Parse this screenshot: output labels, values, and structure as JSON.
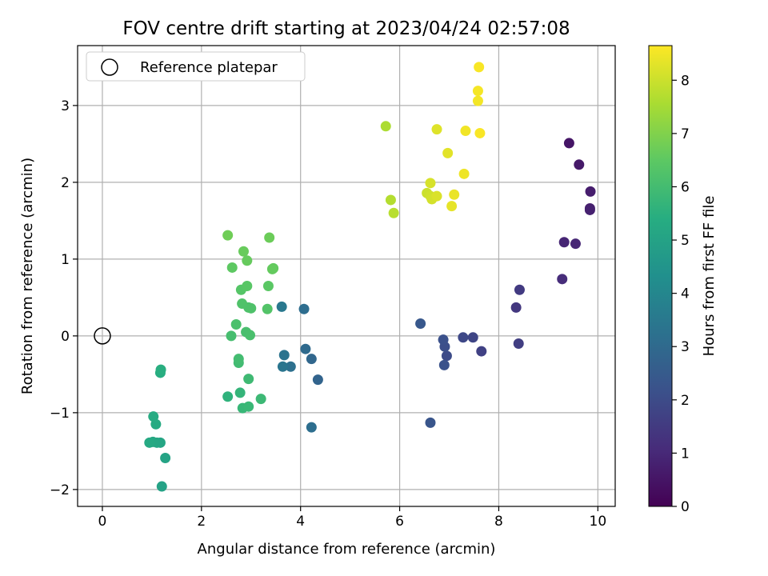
{
  "chart_data": {
    "type": "scatter",
    "title": "FOV centre drift starting at 2023/04/24 02:57:08",
    "xlabel": "Angular distance from reference (arcmin)",
    "ylabel": "Rotation from reference (arcmin)",
    "xlim": [
      -0.5,
      10.35
    ],
    "ylim": [
      -2.22,
      3.78
    ],
    "xticks": [
      0,
      2,
      4,
      6,
      8,
      10
    ],
    "yticks": [
      -2,
      -1,
      0,
      1,
      2,
      3
    ],
    "xtick_labels": [
      "0",
      "2",
      "4",
      "6",
      "8",
      "10"
    ],
    "ytick_labels": [
      "−2",
      "−1",
      "0",
      "1",
      "2",
      "3"
    ],
    "grid": true,
    "legend": {
      "position": "top-left",
      "label": "Reference platepar",
      "marker": "open-circle"
    },
    "reference_point": {
      "x": 0,
      "y": 0
    },
    "colormap": "viridis",
    "colorbar": {
      "label": "Hours from first FF file",
      "range": [
        0,
        8.65
      ],
      "ticks": [
        0,
        1,
        2,
        3,
        4,
        5,
        6,
        7,
        8
      ],
      "tick_labels": [
        "0",
        "1",
        "2",
        "3",
        "4",
        "5",
        "6",
        "7",
        "8"
      ]
    },
    "points": [
      {
        "x": 9.42,
        "y": 2.51,
        "hours": 0.5
      },
      {
        "x": 9.62,
        "y": 2.23,
        "hours": 0.6
      },
      {
        "x": 9.85,
        "y": 1.88,
        "hours": 0.7
      },
      {
        "x": 9.84,
        "y": 1.66,
        "hours": 0.75
      },
      {
        "x": 9.84,
        "y": 1.64,
        "hours": 0.8
      },
      {
        "x": 9.32,
        "y": 1.22,
        "hours": 0.9
      },
      {
        "x": 9.55,
        "y": 1.2,
        "hours": 0.95
      },
      {
        "x": 9.28,
        "y": 0.74,
        "hours": 1.1
      },
      {
        "x": 8.35,
        "y": 0.37,
        "hours": 1.4
      },
      {
        "x": 8.42,
        "y": 0.6,
        "hours": 1.5
      },
      {
        "x": 8.4,
        "y": -0.1,
        "hours": 1.6
      },
      {
        "x": 7.65,
        "y": -0.2,
        "hours": 1.7
      },
      {
        "x": 7.48,
        "y": -0.02,
        "hours": 1.8
      },
      {
        "x": 7.28,
        "y": -0.02,
        "hours": 1.9
      },
      {
        "x": 6.95,
        "y": -0.26,
        "hours": 2.0
      },
      {
        "x": 6.91,
        "y": -0.14,
        "hours": 2.1
      },
      {
        "x": 6.88,
        "y": -0.05,
        "hours": 2.15
      },
      {
        "x": 6.9,
        "y": -0.38,
        "hours": 2.2
      },
      {
        "x": 6.62,
        "y": -1.13,
        "hours": 2.3
      },
      {
        "x": 6.42,
        "y": 0.16,
        "hours": 2.4
      },
      {
        "x": 4.35,
        "y": -0.57,
        "hours": 2.8
      },
      {
        "x": 4.22,
        "y": -0.3,
        "hours": 2.9
      },
      {
        "x": 4.1,
        "y": -0.17,
        "hours": 3.0
      },
      {
        "x": 4.07,
        "y": 0.35,
        "hours": 3.1
      },
      {
        "x": 4.22,
        "y": -1.19,
        "hours": 3.15
      },
      {
        "x": 3.8,
        "y": -0.4,
        "hours": 3.2
      },
      {
        "x": 3.67,
        "y": -0.25,
        "hours": 3.3
      },
      {
        "x": 3.64,
        "y": -0.4,
        "hours": 3.4
      },
      {
        "x": 3.62,
        "y": 0.38,
        "hours": 3.5
      },
      {
        "x": 1.2,
        "y": -1.96,
        "hours": 5.0
      },
      {
        "x": 1.27,
        "y": -1.59,
        "hours": 5.05
      },
      {
        "x": 1.17,
        "y": -1.39,
        "hours": 5.1
      },
      {
        "x": 1.1,
        "y": -1.39,
        "hours": 5.15
      },
      {
        "x": 1.02,
        "y": -1.38,
        "hours": 5.2
      },
      {
        "x": 0.95,
        "y": -1.39,
        "hours": 5.25
      },
      {
        "x": 1.08,
        "y": -1.15,
        "hours": 5.3
      },
      {
        "x": 1.03,
        "y": -1.05,
        "hours": 5.35
      },
      {
        "x": 1.17,
        "y": -0.48,
        "hours": 5.4
      },
      {
        "x": 1.18,
        "y": -0.44,
        "hours": 5.45
      },
      {
        "x": 2.53,
        "y": -0.79,
        "hours": 5.6
      },
      {
        "x": 2.78,
        "y": -0.74,
        "hours": 5.7
      },
      {
        "x": 2.83,
        "y": -0.94,
        "hours": 5.75
      },
      {
        "x": 2.95,
        "y": -0.92,
        "hours": 5.8
      },
      {
        "x": 3.2,
        "y": -0.82,
        "hours": 5.85
      },
      {
        "x": 2.95,
        "y": -0.56,
        "hours": 5.9
      },
      {
        "x": 2.75,
        "y": -0.35,
        "hours": 5.95
      },
      {
        "x": 2.75,
        "y": -0.3,
        "hours": 6.0
      },
      {
        "x": 2.6,
        "y": 0.0,
        "hours": 6.05
      },
      {
        "x": 2.9,
        "y": 0.05,
        "hours": 6.1
      },
      {
        "x": 2.98,
        "y": 0.01,
        "hours": 6.12
      },
      {
        "x": 2.7,
        "y": 0.15,
        "hours": 6.15
      },
      {
        "x": 2.95,
        "y": 0.37,
        "hours": 6.2
      },
      {
        "x": 3.0,
        "y": 0.36,
        "hours": 6.22
      },
      {
        "x": 2.82,
        "y": 0.42,
        "hours": 6.25
      },
      {
        "x": 3.33,
        "y": 0.35,
        "hours": 6.3
      },
      {
        "x": 2.8,
        "y": 0.6,
        "hours": 6.35
      },
      {
        "x": 2.92,
        "y": 0.65,
        "hours": 6.4
      },
      {
        "x": 3.35,
        "y": 0.65,
        "hours": 6.45
      },
      {
        "x": 2.62,
        "y": 0.89,
        "hours": 6.5
      },
      {
        "x": 3.45,
        "y": 0.88,
        "hours": 6.55
      },
      {
        "x": 3.43,
        "y": 0.87,
        "hours": 6.6
      },
      {
        "x": 2.92,
        "y": 0.98,
        "hours": 6.62
      },
      {
        "x": 2.85,
        "y": 1.1,
        "hours": 6.65
      },
      {
        "x": 3.37,
        "y": 1.28,
        "hours": 6.7
      },
      {
        "x": 2.53,
        "y": 1.31,
        "hours": 6.75
      },
      {
        "x": 5.72,
        "y": 2.73,
        "hours": 7.6
      },
      {
        "x": 5.82,
        "y": 1.77,
        "hours": 7.7
      },
      {
        "x": 5.88,
        "y": 1.6,
        "hours": 7.75
      },
      {
        "x": 6.55,
        "y": 1.86,
        "hours": 8.0
      },
      {
        "x": 6.62,
        "y": 1.82,
        "hours": 8.05
      },
      {
        "x": 6.65,
        "y": 1.78,
        "hours": 8.1
      },
      {
        "x": 6.62,
        "y": 1.99,
        "hours": 8.15
      },
      {
        "x": 6.75,
        "y": 1.82,
        "hours": 8.2
      },
      {
        "x": 6.75,
        "y": 2.69,
        "hours": 8.25
      },
      {
        "x": 6.97,
        "y": 2.38,
        "hours": 8.3
      },
      {
        "x": 7.05,
        "y": 1.69,
        "hours": 8.35
      },
      {
        "x": 7.1,
        "y": 1.84,
        "hours": 8.4
      },
      {
        "x": 7.3,
        "y": 2.11,
        "hours": 8.45
      },
      {
        "x": 7.33,
        "y": 2.67,
        "hours": 8.5
      },
      {
        "x": 7.58,
        "y": 3.06,
        "hours": 8.52
      },
      {
        "x": 7.58,
        "y": 3.19,
        "hours": 8.55
      },
      {
        "x": 7.6,
        "y": 3.5,
        "hours": 8.58
      },
      {
        "x": 7.62,
        "y": 2.64,
        "hours": 8.6
      }
    ]
  }
}
